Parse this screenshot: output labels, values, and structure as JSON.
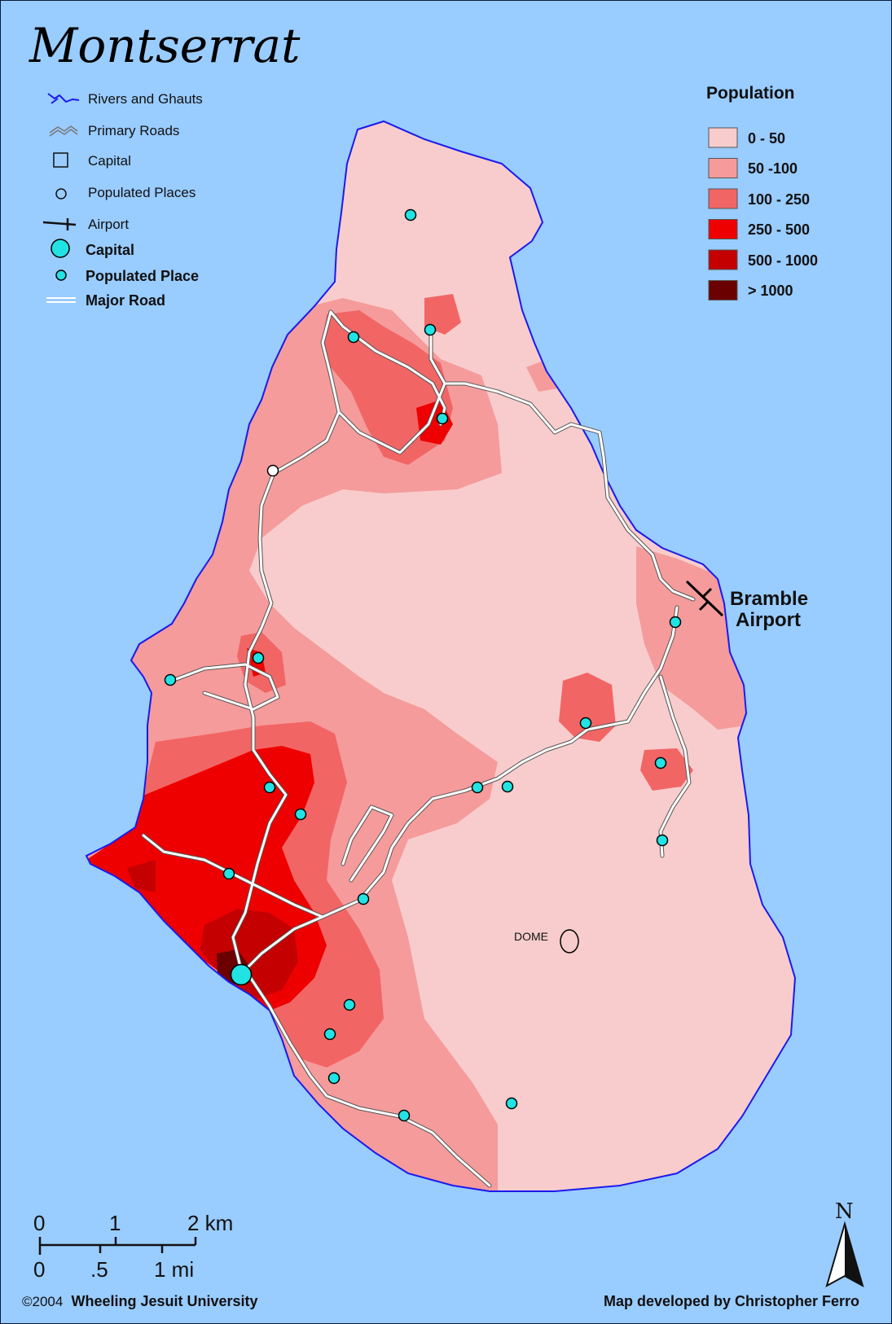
{
  "map": {
    "title": "Montserrat",
    "symbol_legend": [
      {
        "label": "Rivers and Ghauts",
        "symbol": "river-icon"
      },
      {
        "label": "Primary Roads",
        "symbol": "primary-road-icon"
      },
      {
        "label": "Capital",
        "symbol": "square-icon"
      },
      {
        "label": "Populated Places",
        "symbol": "hollow-circle-icon"
      },
      {
        "label": "Airport",
        "symbol": "airport-icon"
      },
      {
        "label": "Capital",
        "symbol": "large-cyan-dot-icon"
      },
      {
        "label": "Populated Place",
        "symbol": "small-cyan-dot-icon"
      },
      {
        "label": "Major Road",
        "symbol": "double-line-road-icon"
      }
    ],
    "population_legend": {
      "title": "Population",
      "classes": [
        {
          "label": "0 - 50",
          "color": "#f8cccc"
        },
        {
          "label": "50 -100",
          "color": "#f59b9b"
        },
        {
          "label": "100 - 250",
          "color": "#f26565"
        },
        {
          "label": "250 - 500",
          "color": "#ee0000"
        },
        {
          "label": "500 - 1000",
          "color": "#c40000"
        },
        {
          "label": "> 1000",
          "color": "#6a0000"
        }
      ]
    },
    "labels": {
      "airport_line1": "Bramble",
      "airport_line2": "Airport",
      "dome": "DOME"
    },
    "scale_bar": {
      "km_ticks": [
        "0",
        "1",
        "2 km"
      ],
      "mi_ticks": [
        "0",
        ".5",
        "1 mi"
      ]
    },
    "north_arrow": "N",
    "credits": {
      "copyright": "©2004",
      "institution": "Wheeling Jesuit University",
      "developer": "Map developed by Christopher Ferro"
    },
    "colors": {
      "sea": "#99ccff",
      "coastline": "#1a1aee",
      "place_marker": "#22e3e3",
      "road": "#ffffff"
    }
  }
}
